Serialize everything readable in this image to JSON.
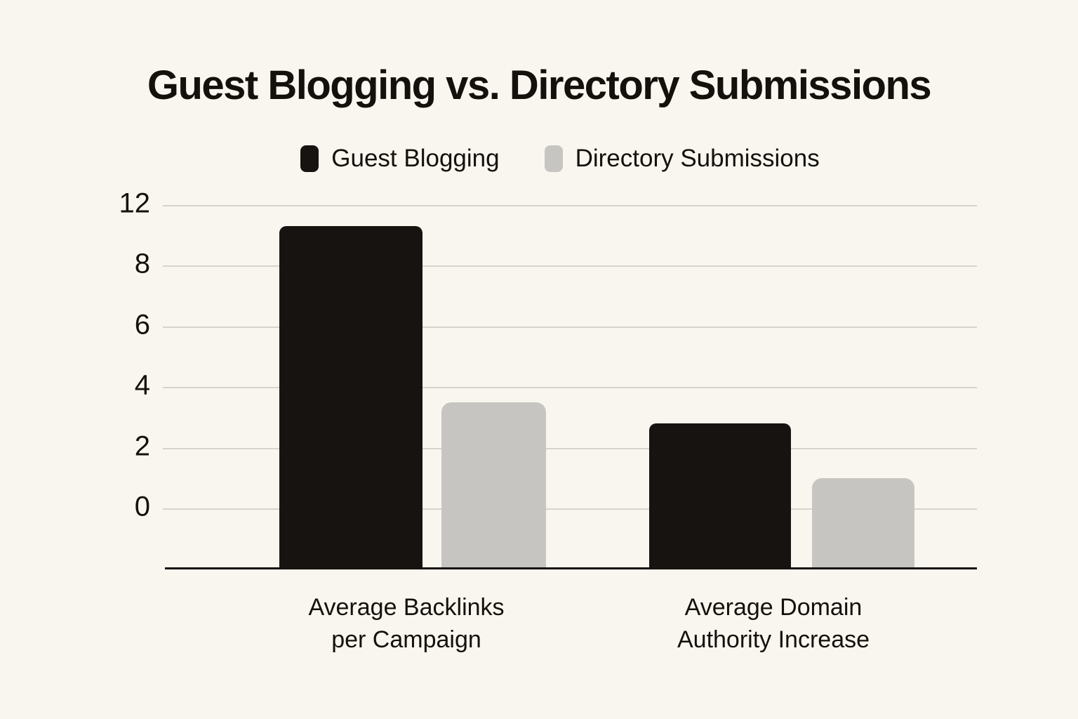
{
  "chart_data": {
    "type": "bar",
    "title": "Guest Blogging vs. Directory Submissions",
    "legend_position": "top-center",
    "grid": true,
    "categories": [
      {
        "label": "Average Backlinks per Campaign",
        "lines": [
          "Average Backlinks",
          "per Campaign"
        ]
      },
      {
        "label": "Average Domain Authority Increase",
        "lines": [
          "Average Domain",
          "Authority Increase"
        ]
      }
    ],
    "series": [
      {
        "name": "Guest Blogging",
        "color": "#161310",
        "values": [
          9.3,
          2.8
        ]
      },
      {
        "name": "Directory Submissions",
        "color": "#c7c5c1",
        "values": [
          3.5,
          1.0
        ]
      }
    ],
    "y_axis": {
      "tick_labels": [
        "12",
        "8",
        "6",
        "4",
        "2",
        "0"
      ],
      "gridlines": true
    }
  },
  "colors": {
    "background": "#f8f6ef",
    "gridline": "#d6d4cd",
    "axis": "#15120e",
    "text": "#14110d"
  }
}
